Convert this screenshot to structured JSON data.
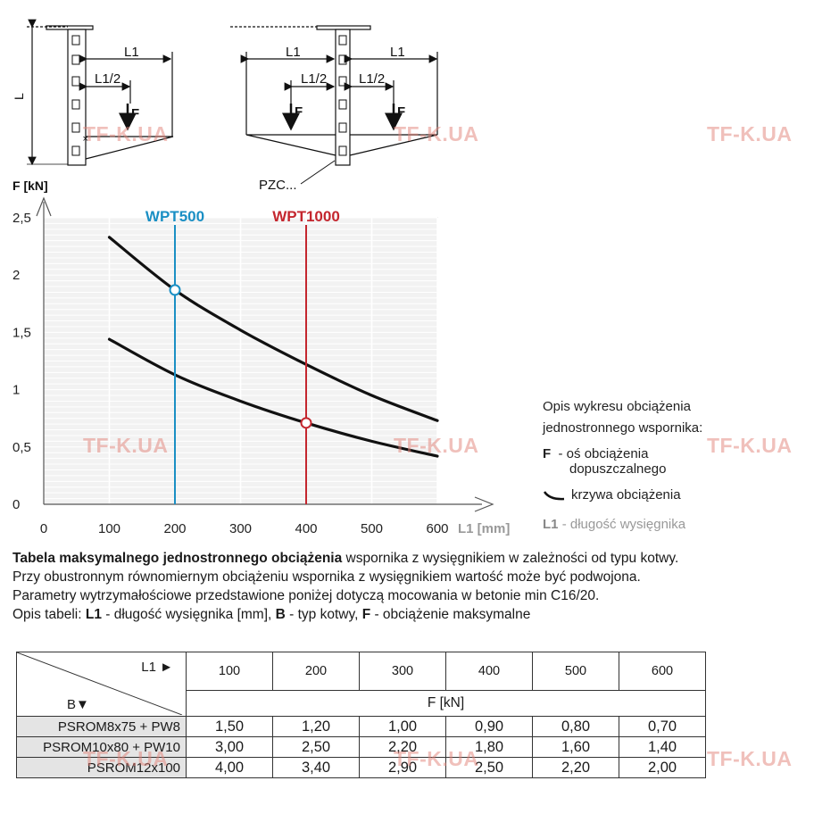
{
  "diagrams": {
    "left": {
      "L": "L",
      "L1": "L1",
      "L1_half": "L1/2",
      "F": "F"
    },
    "right": {
      "L1_left": "L1",
      "L1_right": "L1",
      "L1_half_left": "L1/2",
      "L1_half_right": "L1/2",
      "F_left": "F",
      "F_right": "F",
      "pzc": "PZC..."
    }
  },
  "chart_data": {
    "type": "line",
    "x_ticks": [
      0,
      100,
      200,
      300,
      400,
      500,
      600
    ],
    "y_ticks": [
      "0",
      "0,5",
      "1",
      "1,5",
      "2",
      "2,5"
    ],
    "y_tick_values": [
      0,
      0.5,
      1,
      1.5,
      2,
      2.5
    ],
    "xlabel": "L1 [mm]",
    "ylabel": "F [kN]",
    "xlim": [
      0,
      600
    ],
    "ylim": [
      0,
      2.5
    ],
    "series": [
      {
        "x": [
          100,
          200,
          300,
          400,
          500,
          600
        ],
        "y": [
          2.33,
          1.87,
          1.52,
          1.22,
          0.95,
          0.73
        ]
      },
      {
        "x": [
          100,
          200,
          300,
          400,
          500,
          600
        ],
        "y": [
          1.44,
          1.13,
          0.9,
          0.71,
          0.55,
          0.42
        ]
      }
    ],
    "markers": [
      {
        "label": "WPT500",
        "x": 200,
        "y": 1.87,
        "color": "#1a8fc4"
      },
      {
        "label": "WPT1000",
        "x": 400,
        "y": 0.71,
        "color": "#c4262e"
      }
    ]
  },
  "legend": {
    "title_line1": "Opis wykresu obciążenia",
    "title_line2": "jednostronnego wspornika:",
    "f_key": "F",
    "f_text1": "- oś obciążenia",
    "f_text2": "dopuszczalnego",
    "curve_text": "krzywa obciążenia",
    "l1_key": "L1",
    "l1_text": "- długość wysięgnika"
  },
  "description": {
    "line1_bold": "Tabela maksymalnego jednostronnego obciążenia",
    "line1_rest": " wspornika z wysięgnikiem w zależności od typu kotwy.",
    "line2": "Przy obustronnym równomiernym obciążeniu wspornika z wysięgnikiem wartość może być podwojona.",
    "line3": "Parametry wytrzymałościowe przedstawione poniżej dotyczą mocowania w betonie min C16/20.",
    "line4_a": "Opis tabeli: ",
    "line4_b1": "L1",
    "line4_c": " - długość wysięgnika [mm], ",
    "line4_b2": "B",
    "line4_d": " - typ kotwy, ",
    "line4_b3": "F",
    "line4_e": " - obciążenie maksymalne"
  },
  "table": {
    "corner_top": "L1 ►",
    "corner_bottom": "B▼",
    "columns": [
      "100",
      "200",
      "300",
      "400",
      "500",
      "600"
    ],
    "unit": "F [kN]",
    "rows": [
      {
        "label": "PSROM8x75 + PW8",
        "values": [
          "1,50",
          "1,20",
          "1,00",
          "0,90",
          "0,80",
          "0,70"
        ]
      },
      {
        "label": "PSROM10x80 + PW10",
        "values": [
          "3,00",
          "2,50",
          "2,20",
          "1,80",
          "1,60",
          "1,40"
        ]
      },
      {
        "label": "PSROM12x100",
        "values": [
          "4,00",
          "3,40",
          "2,90",
          "2,50",
          "2,20",
          "2,00"
        ]
      }
    ]
  },
  "watermark": "TF-K.UA"
}
